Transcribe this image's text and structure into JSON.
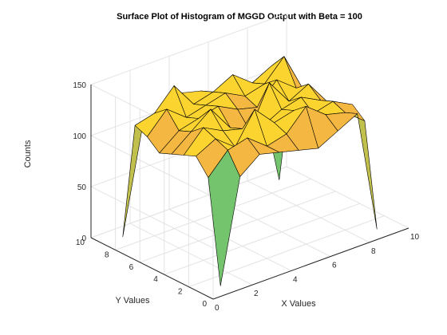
{
  "chart_data": {
    "type": "surface",
    "title": "Surface Plot of Histogram of MGGD Output with Beta = 100",
    "xlabel": "X Values",
    "ylabel": "Y Values",
    "zlabel": "Counts",
    "xlim": [
      0,
      10
    ],
    "ylim": [
      0,
      10
    ],
    "zlim": [
      0,
      150
    ],
    "x_ticks": [
      0,
      2,
      4,
      6,
      8,
      10
    ],
    "y_ticks": [
      0,
      2,
      4,
      6,
      8,
      10
    ],
    "z_ticks": [
      0,
      50,
      100,
      150
    ],
    "grid": true,
    "box": "open",
    "x": [
      1,
      2,
      3,
      4,
      5,
      6,
      7,
      8,
      9
    ],
    "y": [
      1,
      2,
      3,
      4,
      5,
      6,
      7,
      8,
      9
    ],
    "colormap": [
      "#3e26a8",
      "#2c6fd0",
      "#0fa1d8",
      "#24b3a8",
      "#74c36d",
      "#c2c04c",
      "#f4b842",
      "#fbd430",
      "#f9fb15"
    ],
    "z": [
      [
        0,
        100,
        115,
        110,
        105,
        100,
        110,
        120,
        0
      ],
      [
        100,
        120,
        125,
        110,
        115,
        135,
        120,
        115,
        100
      ],
      [
        115,
        125,
        110,
        140,
        120,
        125,
        115,
        120,
        110
      ],
      [
        110,
        130,
        120,
        115,
        110,
        120,
        125,
        115,
        105
      ],
      [
        105,
        120,
        135,
        110,
        100,
        140,
        115,
        125,
        100
      ],
      [
        100,
        115,
        120,
        125,
        115,
        110,
        130,
        115,
        95
      ],
      [
        110,
        130,
        115,
        120,
        125,
        115,
        120,
        140,
        100
      ],
      [
        115,
        120,
        140,
        115,
        120,
        130,
        115,
        125,
        105
      ],
      [
        0,
        100,
        110,
        120,
        115,
        105,
        100,
        95,
        0
      ]
    ]
  }
}
